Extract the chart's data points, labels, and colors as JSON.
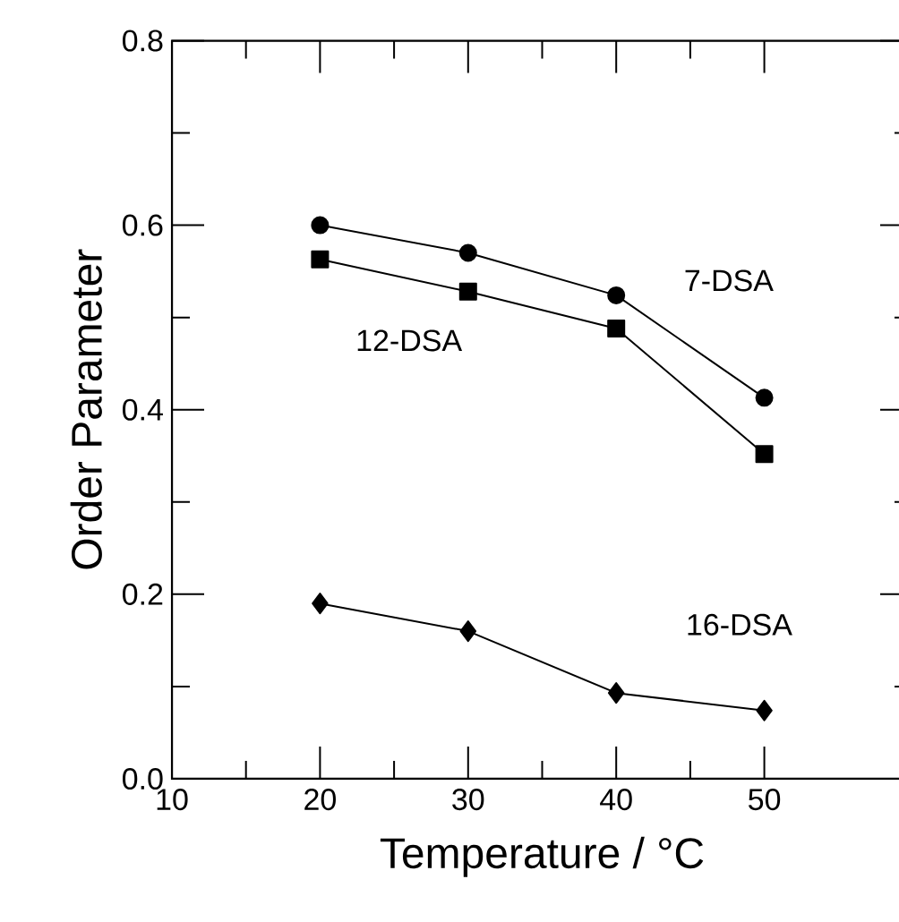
{
  "chart_data": {
    "type": "line",
    "xlabel": "Temperature / °C",
    "ylabel": "Order Parameter",
    "x": [
      20,
      30,
      40,
      50
    ],
    "series": [
      {
        "name": "7-DSA",
        "color": "#000000",
        "marker": "circle",
        "values": [
          0.6,
          0.57,
          0.524,
          0.413
        ]
      },
      {
        "name": "12-DSA",
        "color": "#000000",
        "marker": "square",
        "values": [
          0.563,
          0.528,
          0.488,
          0.352
        ]
      },
      {
        "name": "16-DSA",
        "color": "#000000",
        "marker": "diamond",
        "values": [
          0.19,
          0.16,
          0.093,
          0.074
        ]
      }
    ],
    "xlim": [
      10,
      60
    ],
    "xticks": [
      10,
      20,
      30,
      40,
      50
    ],
    "ylim": [
      0,
      0.8
    ],
    "yticks": [
      {
        "value": 0,
        "label": "0.0"
      },
      0.2,
      0.4,
      0.6,
      0.8
    ],
    "grid": false,
    "legend": false,
    "line_style": "solid"
  }
}
